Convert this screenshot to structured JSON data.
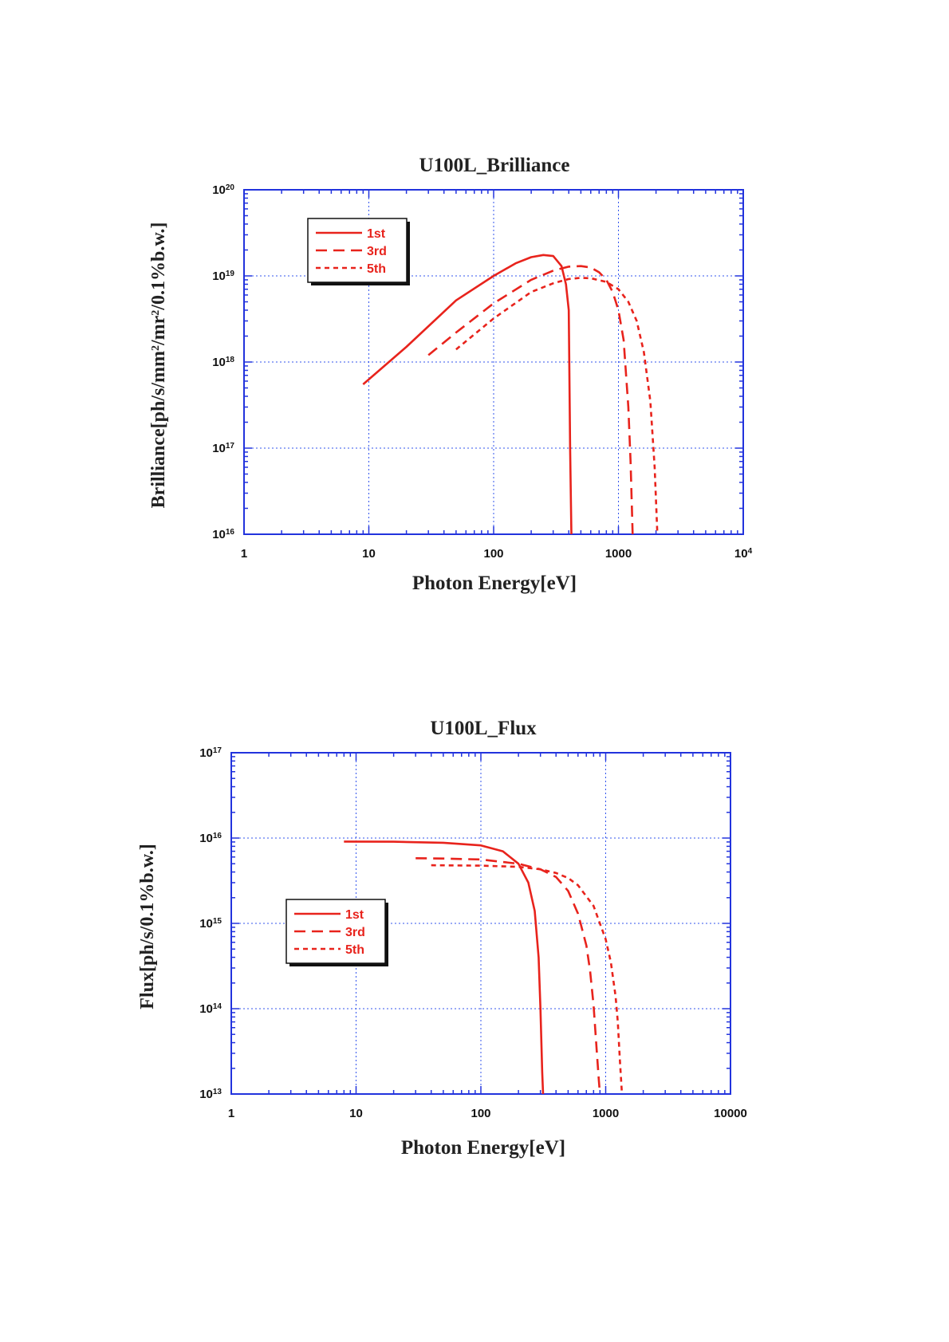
{
  "chart_data": [
    {
      "type": "line",
      "title": "U100L_Brilliance",
      "xlabel": "Photon Energy[eV]",
      "ylabel_parts": [
        "Brilliance[ph/s/mm",
        "2",
        "/mr",
        "2",
        "/0.1%b.w.]"
      ],
      "xscale": "log",
      "yscale": "log",
      "xlim": [
        1,
        10000
      ],
      "ylim": [
        1e+16,
        1e+20
      ],
      "grid": true,
      "legend_position": "top-left",
      "x_ticks": [
        {
          "value": 1,
          "base": "1",
          "exp": ""
        },
        {
          "value": 10,
          "base": "10",
          "exp": ""
        },
        {
          "value": 100,
          "base": "100",
          "exp": ""
        },
        {
          "value": 1000,
          "base": "1000",
          "exp": ""
        },
        {
          "value": 10000,
          "base": "10",
          "exp": "4"
        }
      ],
      "y_ticks": [
        {
          "value": 1e+16,
          "base": "10",
          "exp": "16"
        },
        {
          "value": 1e+17,
          "base": "10",
          "exp": "17"
        },
        {
          "value": 1e+18,
          "base": "10",
          "exp": "18"
        },
        {
          "value": 1e+19,
          "base": "10",
          "exp": "19"
        },
        {
          "value": 1e+20,
          "base": "10",
          "exp": "20"
        }
      ],
      "series": [
        {
          "name": "1st",
          "dash": "solid",
          "x": [
            9,
            20,
            50,
            100,
            150,
            200,
            250,
            300,
            350,
            380,
            400,
            410,
            420
          ],
          "y": [
            5.5e+17,
            1.5e+18,
            5.2e+18,
            1e+19,
            1.4e+19,
            1.65e+19,
            1.75e+19,
            1.7e+19,
            1.3e+19,
            8e+18,
            4e+18,
            1e+17,
            1e+16
          ]
        },
        {
          "name": "3rd",
          "dash": "long-dash",
          "x": [
            30,
            50,
            100,
            200,
            300,
            400,
            500,
            600,
            700,
            800,
            900,
            1000,
            1100,
            1200,
            1250,
            1300
          ],
          "y": [
            1.2e+18,
            2.2e+18,
            4.8e+18,
            9e+18,
            1.15e+19,
            1.28e+19,
            1.3e+19,
            1.25e+19,
            1.1e+19,
            9e+18,
            6.5e+18,
            4e+18,
            1.8e+18,
            3e+17,
            7e+16,
            1e+16
          ]
        },
        {
          "name": "5th",
          "dash": "short-dash",
          "x": [
            50,
            100,
            200,
            300,
            400,
            500,
            600,
            800,
            1000,
            1200,
            1400,
            1600,
            1800,
            1950,
            2050
          ],
          "y": [
            1.4e+18,
            3.2e+18,
            6.5e+18,
            8.2e+18,
            9.2e+18,
            9.5e+18,
            9.4e+18,
            8.5e+18,
            7e+18,
            5e+18,
            3e+18,
            1.3e+18,
            3.5e+17,
            6e+16,
            1e+16
          ]
        }
      ]
    },
    {
      "type": "line",
      "title": "U100L_Flux",
      "xlabel": "Photon Energy[eV]",
      "ylabel_parts": [
        "Flux[ph/s/0.1%b.w.]"
      ],
      "xscale": "log",
      "yscale": "log",
      "xlim": [
        1,
        10000
      ],
      "ylim": [
        10000000000000.0,
        1e+17
      ],
      "grid": true,
      "legend_position": "middle-left",
      "x_ticks": [
        {
          "value": 1,
          "base": "1",
          "exp": ""
        },
        {
          "value": 10,
          "base": "10",
          "exp": ""
        },
        {
          "value": 100,
          "base": "100",
          "exp": ""
        },
        {
          "value": 1000,
          "base": "1000",
          "exp": ""
        },
        {
          "value": 10000,
          "base": "10000",
          "exp": ""
        }
      ],
      "y_ticks": [
        {
          "value": 10000000000000.0,
          "base": "10",
          "exp": "13"
        },
        {
          "value": 100000000000000.0,
          "base": "10",
          "exp": "14"
        },
        {
          "value": 1000000000000000.0,
          "base": "10",
          "exp": "15"
        },
        {
          "value": 1e+16,
          "base": "10",
          "exp": "16"
        },
        {
          "value": 1e+17,
          "base": "10",
          "exp": "17"
        }
      ],
      "series": [
        {
          "name": "1st",
          "dash": "solid",
          "x": [
            8,
            20,
            50,
            100,
            150,
            200,
            240,
            270,
            290,
            300,
            310,
            315
          ],
          "y": [
            9100000000000000.0,
            9050000000000000.0,
            8800000000000000.0,
            8200000000000000.0,
            7000000000000000.0,
            5000000000000000.0,
            3000000000000000.0,
            1400000000000000.0,
            400000000000000.0,
            100000000000000.0,
            18000000000000.0,
            10000000000000.0
          ]
        },
        {
          "name": "3rd",
          "dash": "long-dash",
          "x": [
            30,
            50,
            100,
            200,
            300,
            400,
            500,
            600,
            700,
            750,
            800,
            850,
            880,
            900
          ],
          "y": [
            5800000000000000.0,
            5750000000000000.0,
            5600000000000000.0,
            5000000000000000.0,
            4300000000000000.0,
            3500000000000000.0,
            2400000000000000.0,
            1300000000000000.0,
            550000000000000.0,
            280000000000000.0,
            110000000000000.0,
            30000000000000.0,
            15000000000000.0,
            10000000000000.0
          ]
        },
        {
          "name": "5th",
          "dash": "short-dash",
          "x": [
            40,
            100,
            200,
            300,
            400,
            500,
            600,
            800,
            1000,
            1100,
            1200,
            1250,
            1300,
            1350
          ],
          "y": [
            4800000000000000.0,
            4750000000000000.0,
            4600000000000000.0,
            4300000000000000.0,
            3900000000000000.0,
            3400000000000000.0,
            2800000000000000.0,
            1600000000000000.0,
            650000000000000.0,
            350000000000000.0,
            140000000000000.0,
            70000000000000.0,
            25000000000000.0,
            10000000000000.0
          ]
        }
      ]
    }
  ]
}
